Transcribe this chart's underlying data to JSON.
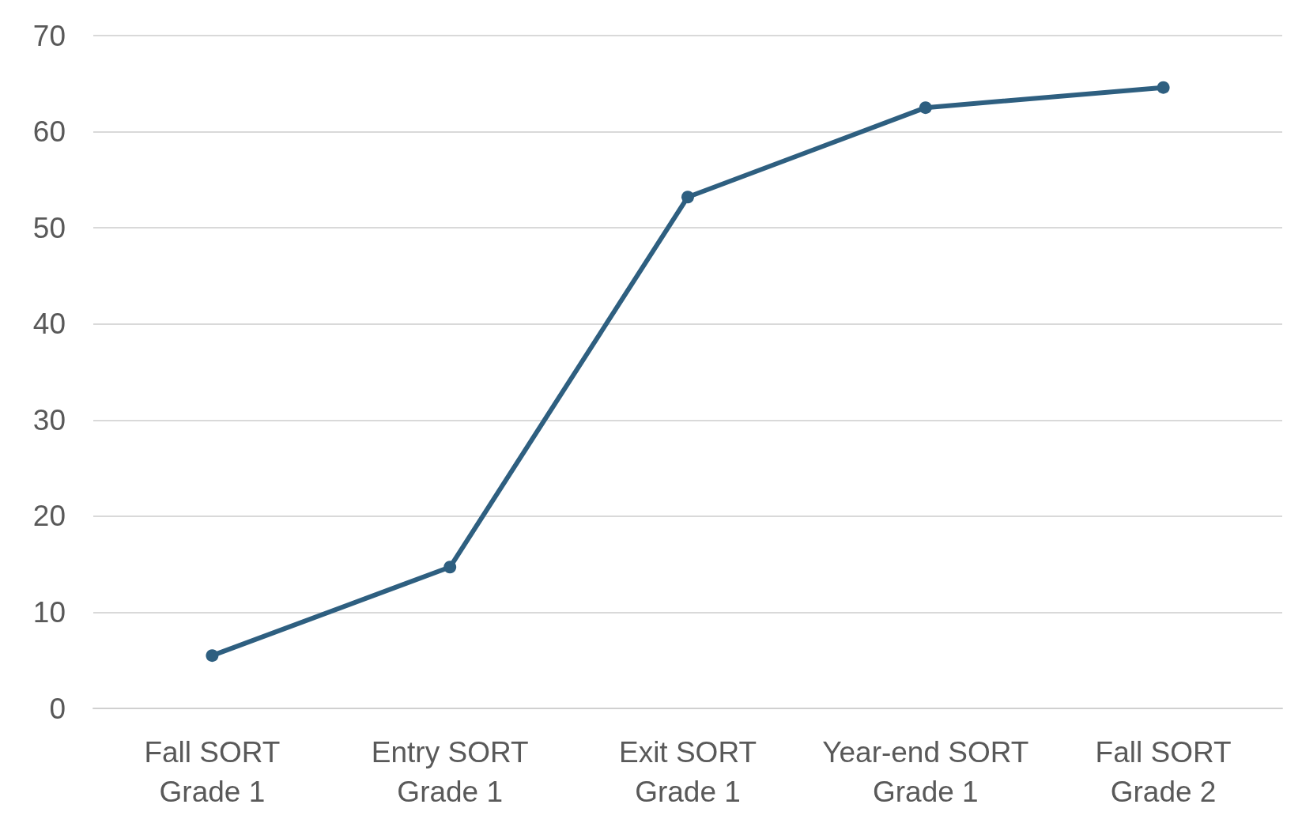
{
  "chart_data": {
    "type": "line",
    "categories": [
      "Fall SORT\nGrade 1",
      "Entry SORT\nGrade 1",
      "Exit SORT\nGrade 1",
      "Year-end SORT\nGrade 1",
      "Fall SORT\nGrade 2"
    ],
    "series": [
      {
        "color": "#2e5f80",
        "values": [
          5.5,
          14.7,
          53.2,
          62.5,
          64.6
        ]
      }
    ],
    "ylim": [
      0,
      70
    ],
    "yticks": [
      0,
      10,
      20,
      30,
      40,
      50,
      60,
      70
    ],
    "grid": "y",
    "marker": "circle",
    "line_style": "solid"
  }
}
